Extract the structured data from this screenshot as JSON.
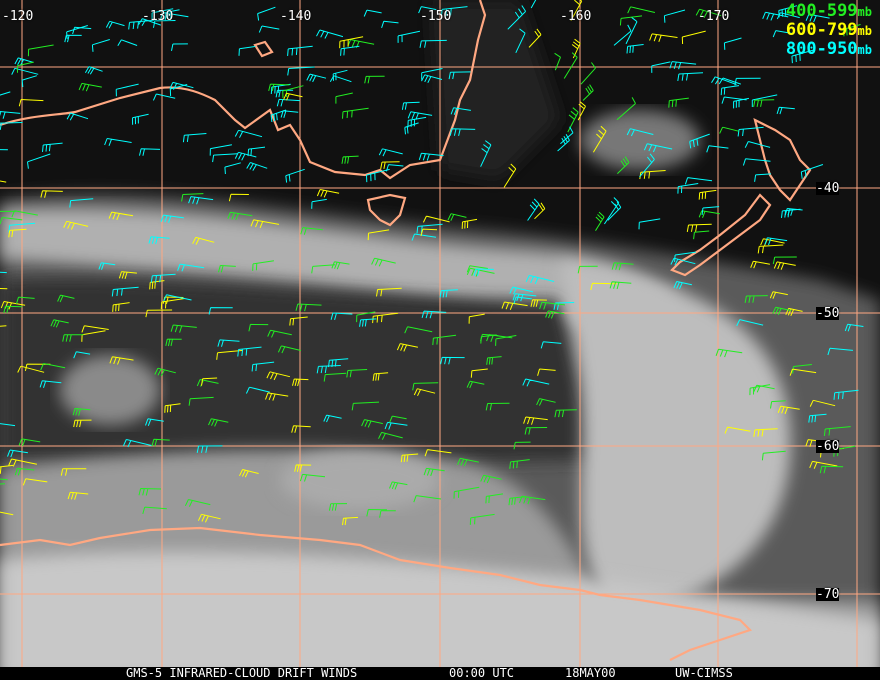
{
  "map": {
    "longitude_labels": [
      "-120",
      "-130",
      "-140",
      "-150",
      "-160",
      "-170"
    ],
    "latitude_labels": [
      "-40",
      "-50",
      "-60",
      "-70"
    ],
    "grid_color": "#ffa882",
    "coastline_color": "#ffa882"
  },
  "legend": [
    {
      "range": "400-599",
      "unit": "mb",
      "color": "#22ee22"
    },
    {
      "range": "600-799",
      "unit": "mb",
      "color": "#ffff00"
    },
    {
      "range": "800-950",
      "unit": "mb",
      "color": "#00ffff"
    }
  ],
  "caption": {
    "product": "GMS-5 INFRARED-CLOUD DRIFT WINDS",
    "time": "00:00 UTC",
    "date": "18MAY00",
    "source": "UW-CIMSS"
  }
}
